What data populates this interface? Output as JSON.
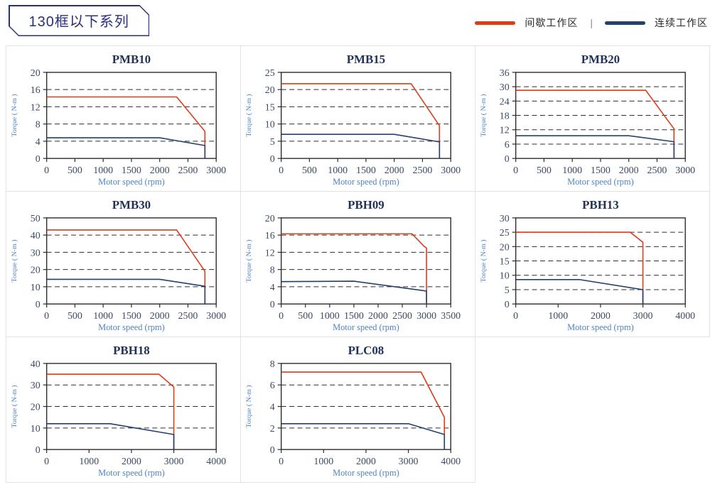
{
  "header": {
    "series_title": "130框以下系列",
    "legend": [
      {
        "label": "间歇工作区",
        "color": "#e03a18"
      },
      {
        "label": "连续工作区",
        "color": "#24406e"
      }
    ],
    "legend_separator": "|",
    "badge_color": "#2a2f82"
  },
  "chart_data": [
    {
      "type": "line",
      "title": "PMB10",
      "xlabel": "Motor speed (rpm)",
      "ylabel": "Torque ( N-m )",
      "xlim": [
        0,
        3000
      ],
      "xtick_step": 500,
      "ylim": [
        0,
        20
      ],
      "ytick_step": 4,
      "grid": "dashed-horizontal",
      "legend_position": "page-top-right",
      "series": [
        {
          "name": "间歇工作区",
          "color": "#e03a18",
          "points": [
            [
              0,
              14.3
            ],
            [
              2300,
              14.3
            ],
            [
              2800,
              6.3
            ],
            [
              2800,
              0
            ]
          ]
        },
        {
          "name": "连续工作区",
          "color": "#24406e",
          "points": [
            [
              0,
              4.8
            ],
            [
              2000,
              4.8
            ],
            [
              2800,
              3.0
            ],
            [
              2800,
              0
            ]
          ]
        }
      ]
    },
    {
      "type": "line",
      "title": "PMB15",
      "xlabel": "Motor speed (rpm)",
      "ylabel": "Torque ( N-m )",
      "xlim": [
        0,
        3000
      ],
      "xtick_step": 500,
      "ylim": [
        0,
        25
      ],
      "ytick_step": 5,
      "grid": "dashed-horizontal",
      "legend_position": "page-top-right",
      "series": [
        {
          "name": "间歇工作区",
          "color": "#e03a18",
          "points": [
            [
              0,
              21.7
            ],
            [
              2300,
              21.7
            ],
            [
              2800,
              9.5
            ],
            [
              2800,
              0
            ]
          ]
        },
        {
          "name": "连续工作区",
          "color": "#24406e",
          "points": [
            [
              0,
              7.0
            ],
            [
              2000,
              7.0
            ],
            [
              2800,
              4.8
            ],
            [
              2800,
              0
            ]
          ]
        }
      ]
    },
    {
      "type": "line",
      "title": "PMB20",
      "xlabel": "Motor speed (rpm)",
      "ylabel": "Torque ( N-m )",
      "xlim": [
        0,
        3000
      ],
      "xtick_step": 500,
      "ylim": [
        0,
        36
      ],
      "ytick_step": 6,
      "grid": "dashed-horizontal",
      "legend_position": "page-top-right",
      "series": [
        {
          "name": "间歇工作区",
          "color": "#e03a18",
          "points": [
            [
              0,
              28.5
            ],
            [
              2300,
              28.5
            ],
            [
              2800,
              12.4
            ],
            [
              2800,
              0
            ]
          ]
        },
        {
          "name": "连续工作区",
          "color": "#24406e",
          "points": [
            [
              0,
              9.5
            ],
            [
              2000,
              9.5
            ],
            [
              2800,
              7.0
            ],
            [
              2800,
              0
            ]
          ]
        }
      ]
    },
    {
      "type": "line",
      "title": "PMB30",
      "xlabel": "Motor speed (rpm)",
      "ylabel": "Torque ( N-m )",
      "xlim": [
        0,
        3000
      ],
      "xtick_step": 500,
      "ylim": [
        0,
        50
      ],
      "ytick_step": 10,
      "grid": "dashed-horizontal",
      "legend_position": "page-top-right",
      "series": [
        {
          "name": "间歇工作区",
          "color": "#e03a18",
          "points": [
            [
              0,
              43
            ],
            [
              2300,
              43
            ],
            [
              2800,
              19
            ],
            [
              2800,
              0
            ]
          ]
        },
        {
          "name": "连续工作区",
          "color": "#24406e",
          "points": [
            [
              0,
              14.3
            ],
            [
              2000,
              14.3
            ],
            [
              2800,
              10.3
            ],
            [
              2800,
              0
            ]
          ]
        }
      ]
    },
    {
      "type": "line",
      "title": "PBH09",
      "xlabel": "Motor speed (rpm)",
      "ylabel": "Torque ( N-m )",
      "xlim": [
        0,
        3500
      ],
      "xtick_step": 500,
      "ylim": [
        0,
        20
      ],
      "ytick_step": 4,
      "grid": "dashed-horizontal",
      "legend_position": "page-top-right",
      "series": [
        {
          "name": "间歇工作区",
          "color": "#e03a18",
          "points": [
            [
              0,
              16.3
            ],
            [
              2700,
              16.3
            ],
            [
              2950,
              13.4
            ],
            [
              3000,
              13.0
            ],
            [
              3000,
              0
            ]
          ]
        },
        {
          "name": "连续工作区",
          "color": "#24406e",
          "points": [
            [
              0,
              5.2
            ],
            [
              1500,
              5.3
            ],
            [
              3000,
              3.0
            ],
            [
              3000,
              0
            ]
          ]
        }
      ]
    },
    {
      "type": "line",
      "title": "PBH13",
      "xlabel": "Motor speed (rpm)",
      "ylabel": "Torque ( N-m )",
      "xlim": [
        0,
        4000
      ],
      "xtick_step": 1000,
      "ylim": [
        0,
        30
      ],
      "ytick_step": 5,
      "grid": "dashed-horizontal",
      "legend_position": "page-top-right",
      "series": [
        {
          "name": "间歇工作区",
          "color": "#e03a18",
          "points": [
            [
              0,
              25
            ],
            [
              2700,
              25
            ],
            [
              3000,
              21.5
            ],
            [
              3000,
              0
            ]
          ]
        },
        {
          "name": "连续工作区",
          "color": "#24406e",
          "points": [
            [
              0,
              8.5
            ],
            [
              1500,
              8.5
            ],
            [
              3000,
              5.0
            ],
            [
              3000,
              0
            ]
          ]
        }
      ]
    },
    {
      "type": "line",
      "title": "PBH18",
      "xlabel": "Motor speed (rpm)",
      "ylabel": "Torque ( N-m )",
      "xlim": [
        0,
        4000
      ],
      "xtick_step": 1000,
      "ylim": [
        0,
        40
      ],
      "ytick_step": 10,
      "grid": "dashed-horizontal",
      "legend_position": "page-top-right",
      "series": [
        {
          "name": "间歇工作区",
          "color": "#e03a18",
          "points": [
            [
              0,
              35
            ],
            [
              2650,
              35
            ],
            [
              3000,
              29
            ],
            [
              3000,
              0
            ]
          ]
        },
        {
          "name": "连续工作区",
          "color": "#24406e",
          "points": [
            [
              0,
              12
            ],
            [
              1500,
              12
            ],
            [
              3000,
              7
            ],
            [
              3000,
              0
            ]
          ]
        }
      ]
    },
    {
      "type": "line",
      "title": "PLC08",
      "xlabel": "Motor speed (rpm)",
      "ylabel": "Torque ( N-m )",
      "xlim": [
        0,
        4000
      ],
      "xtick_step": 1000,
      "ylim": [
        0,
        8
      ],
      "ytick_step": 2,
      "grid": "dashed-horizontal",
      "legend_position": "page-top-right",
      "series": [
        {
          "name": "间歇工作区",
          "color": "#e03a18",
          "points": [
            [
              0,
              7.2
            ],
            [
              3300,
              7.2
            ],
            [
              3850,
              3.0
            ],
            [
              3850,
              0
            ]
          ]
        },
        {
          "name": "连续工作区",
          "color": "#24406e",
          "points": [
            [
              0,
              2.4
            ],
            [
              3000,
              2.4
            ],
            [
              3850,
              1.4
            ],
            [
              3850,
              0
            ]
          ]
        }
      ]
    }
  ]
}
